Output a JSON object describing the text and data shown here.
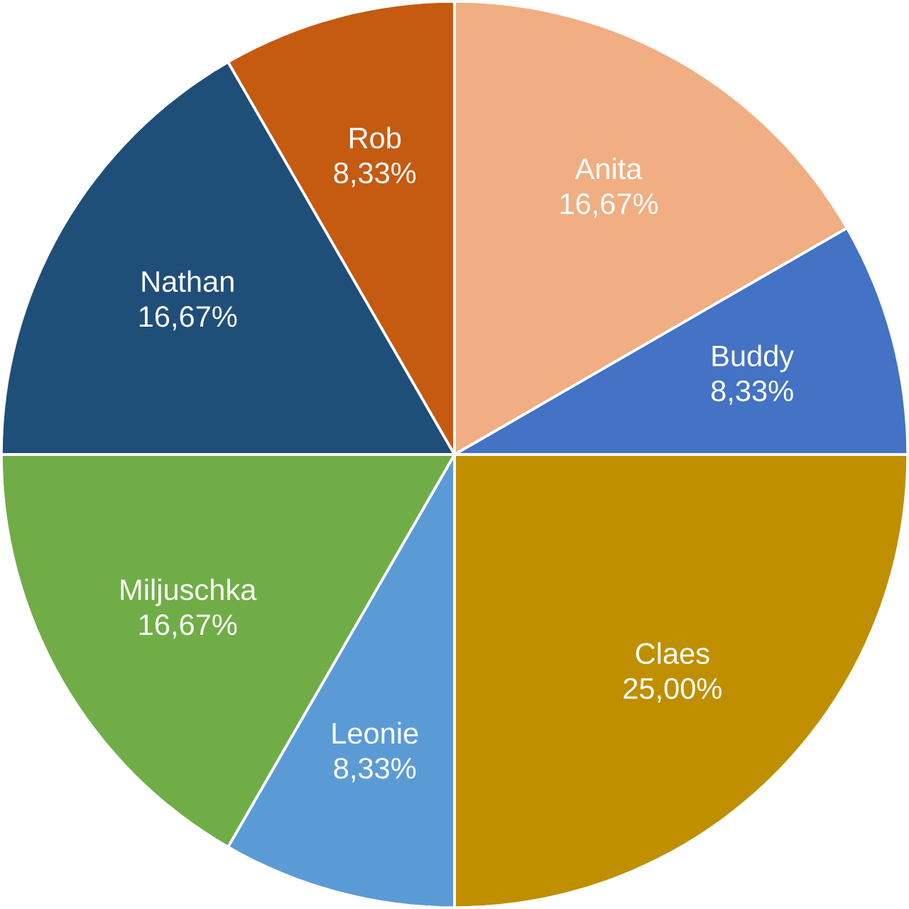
{
  "chart_data": {
    "type": "pie",
    "categories": [
      "Anita",
      "Buddy",
      "Claes",
      "Leonie",
      "Miljuschka",
      "Nathan",
      "Rob"
    ],
    "values": [
      16.67,
      8.33,
      25.0,
      8.33,
      16.67,
      16.67,
      8.33
    ],
    "value_labels": [
      "16,67%",
      "8,33%",
      "25,00%",
      "8,33%",
      "16,67%",
      "16,67%",
      "8,33%"
    ],
    "colors": [
      "#f0ae82",
      "#4472c4",
      "#bf8f00",
      "#5b9bd5",
      "#70ad47",
      "#1f4e79",
      "#c55a11"
    ]
  }
}
